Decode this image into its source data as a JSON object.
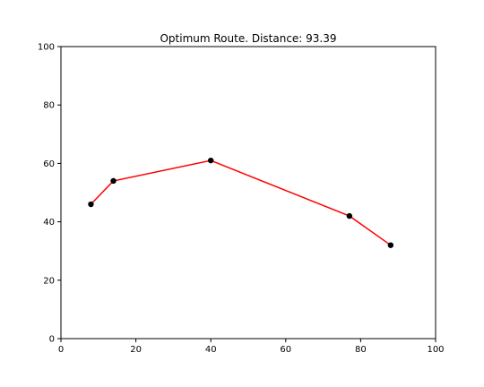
{
  "chart_data": {
    "type": "line",
    "title": "Optimum Route. Distance: 93.39",
    "xlabel": "",
    "ylabel": "",
    "xlim": [
      0,
      100
    ],
    "ylim": [
      0,
      100
    ],
    "xticks": [
      0,
      20,
      40,
      60,
      80,
      100
    ],
    "yticks": [
      0,
      20,
      40,
      60,
      80,
      100
    ],
    "grid": false,
    "series": [
      {
        "points": [
          [
            8,
            46
          ],
          [
            14,
            54
          ],
          [
            40,
            61
          ],
          [
            77,
            42
          ],
          [
            88,
            32
          ]
        ],
        "line_color": "#ff0000",
        "marker_color": "#000000"
      }
    ]
  }
}
